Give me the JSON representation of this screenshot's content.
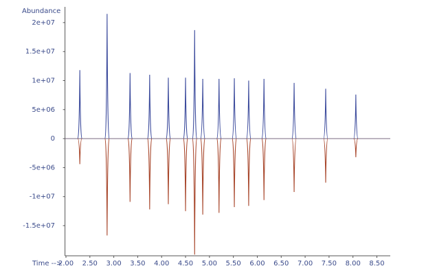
{
  "chart_data": {
    "type": "mirror-spikes",
    "ylabel": "Abundance",
    "xlabel": "Time -->",
    "x": [
      2.29,
      2.86,
      3.34,
      3.75,
      4.14,
      4.5,
      4.69,
      4.86,
      5.2,
      5.52,
      5.82,
      6.14,
      6.77,
      7.43,
      8.06
    ],
    "series": [
      {
        "color": "#3b4a9c",
        "values": [
          11800000,
          21500000,
          11300000,
          11000000,
          10500000,
          10500000,
          18700000,
          10300000,
          10300000,
          10400000,
          10000000,
          10300000,
          9600000,
          8600000,
          7600000
        ]
      },
      {
        "color": "#a8472c",
        "values": [
          -4400000,
          -16700000,
          -10900000,
          -12200000,
          -11300000,
          -12500000,
          -20000000,
          -13100000,
          -12800000,
          -11800000,
          -11600000,
          -10600000,
          -9200000,
          -7600000,
          -3200000
        ]
      }
    ],
    "xlim": [
      1.98,
      8.78
    ],
    "ylim": [
      -20200000,
      22000000
    ],
    "xticks": [
      {
        "value": 2,
        "label": "2.00"
      },
      {
        "value": 2.5,
        "label": "2.50"
      },
      {
        "value": 3,
        "label": "3.00"
      },
      {
        "value": 3.5,
        "label": "3.50"
      },
      {
        "value": 4,
        "label": "4.00"
      },
      {
        "value": 4.5,
        "label": "4.50"
      },
      {
        "value": 5,
        "label": "5.00"
      },
      {
        "value": 5.5,
        "label": "5.50"
      },
      {
        "value": 6,
        "label": "6.00"
      },
      {
        "value": 6.5,
        "label": "6.50"
      },
      {
        "value": 7,
        "label": "7.00"
      },
      {
        "value": 7.5,
        "label": "7.50"
      },
      {
        "value": 8,
        "label": "8.00"
      },
      {
        "value": 8.5,
        "label": "8.50"
      }
    ],
    "yticks": [
      {
        "value": 20000000,
        "label": "2e+07"
      },
      {
        "value": 15000000,
        "label": "1.5e+07"
      },
      {
        "value": 10000000,
        "label": "1e+07"
      },
      {
        "value": 5000000,
        "label": "5e+06"
      },
      0,
      {
        "value": -5000000,
        "label": "-5e+06"
      },
      {
        "value": -10000000,
        "label": "-1e+07"
      },
      {
        "value": -15000000,
        "label": "-1.5e+07"
      }
    ]
  }
}
